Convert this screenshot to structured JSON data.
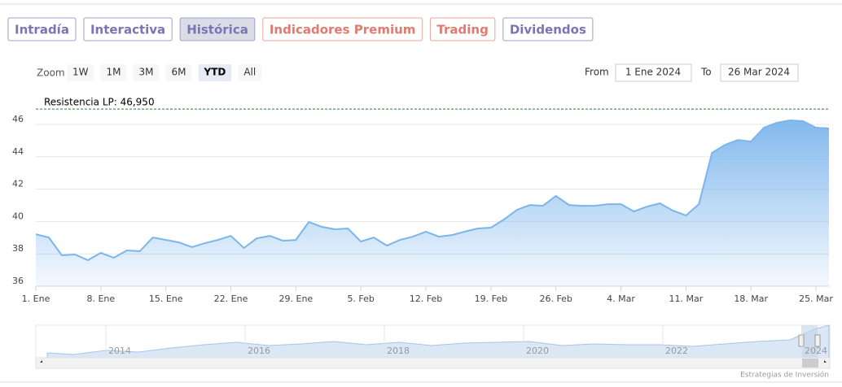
{
  "tabs": [
    "Intradía",
    "Interactiva",
    "Histórica",
    "Indicadores Premium",
    "Trading",
    "Dividendos"
  ],
  "zoom": {
    "label": "Zoom",
    "buttons": [
      "1W",
      "1M",
      "3M",
      "6M",
      "YTD",
      "All"
    ],
    "selected": "YTD"
  },
  "range": {
    "from_label": "From",
    "from": "1 Ene 2024",
    "to_label": "To",
    "to": "26 Mar 2024"
  },
  "navigator": {
    "labels": [
      "2014",
      "2016",
      "2018",
      "2020",
      "2022",
      "2024"
    ]
  },
  "credit": "Estrategias de Inversión",
  "chart_data": {
    "type": "area",
    "color": "#7cb5ec",
    "x": [
      0,
      1,
      2,
      3,
      4,
      5,
      6,
      7,
      8,
      9,
      10,
      11,
      12,
      13,
      14,
      15,
      16,
      17,
      18,
      19,
      20,
      21,
      22,
      23,
      24,
      25,
      26,
      27,
      28,
      29,
      30,
      31,
      32,
      33,
      34,
      35,
      36,
      37,
      38,
      39,
      40,
      41,
      42,
      43,
      44,
      45,
      46,
      47,
      48,
      49,
      50,
      51,
      52,
      53,
      54,
      55,
      56,
      57,
      58,
      59,
      60,
      61
    ],
    "values": [
      39.21,
      39.01,
      37.91,
      37.96,
      37.61,
      38.06,
      37.76,
      38.21,
      38.16,
      39.01,
      38.86,
      38.71,
      38.41,
      38.66,
      38.86,
      39.11,
      38.36,
      38.96,
      39.11,
      38.81,
      38.86,
      39.97,
      39.67,
      39.52,
      39.57,
      38.76,
      39.01,
      38.51,
      38.86,
      39.06,
      39.37,
      39.06,
      39.16,
      39.37,
      39.57,
      39.62,
      40.12,
      40.72,
      41.02,
      40.97,
      41.58,
      41.02,
      40.97,
      40.97,
      41.07,
      41.07,
      40.62,
      40.92,
      41.12,
      40.67,
      40.37,
      41.07,
      44.24,
      44.74,
      45.04,
      44.94,
      45.8,
      46.1,
      46.25,
      46.2,
      45.8,
      45.75
    ],
    "xlim": [
      0,
      61
    ],
    "xticks": [
      {
        "value": 0,
        "label": "1. Ene"
      },
      {
        "value": 5,
        "label": "8. Ene"
      },
      {
        "value": 10,
        "label": "15. Ene"
      },
      {
        "value": 15,
        "label": "22. Ene"
      },
      {
        "value": 20,
        "label": "29. Ene"
      },
      {
        "value": 25,
        "label": "5. Feb"
      },
      {
        "value": 30,
        "label": "12. Feb"
      },
      {
        "value": 35,
        "label": "19. Feb"
      },
      {
        "value": 40,
        "label": "26. Feb"
      },
      {
        "value": 45,
        "label": "4. Mar"
      },
      {
        "value": 50,
        "label": "11. Mar"
      },
      {
        "value": 55,
        "label": "18. Mar"
      },
      {
        "value": 60,
        "label": "25. Mar"
      }
    ],
    "ylim": [
      36,
      47.6
    ],
    "yticks": [
      36,
      38,
      40,
      42,
      44,
      46
    ],
    "grid": true,
    "plot_line": {
      "value": 46.95,
      "label": "Resistencia LP: 46,950",
      "color": "#2e7d32"
    }
  }
}
